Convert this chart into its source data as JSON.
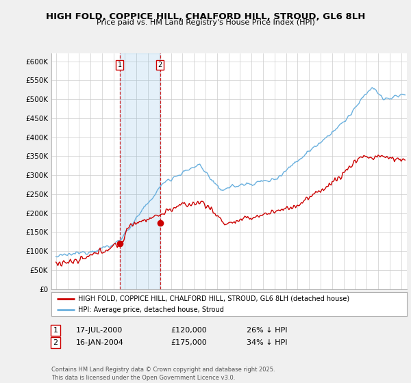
{
  "title": "HIGH FOLD, COPPICE HILL, CHALFORD HILL, STROUD, GL6 8LH",
  "subtitle": "Price paid vs. HM Land Registry's House Price Index (HPI)",
  "ylabel_ticks": [
    "£0",
    "£50K",
    "£100K",
    "£150K",
    "£200K",
    "£250K",
    "£300K",
    "£350K",
    "£400K",
    "£450K",
    "£500K",
    "£550K",
    "£600K"
  ],
  "ytick_values": [
    0,
    50000,
    100000,
    150000,
    200000,
    250000,
    300000,
    350000,
    400000,
    450000,
    500000,
    550000,
    600000
  ],
  "xlim": [
    1994.6,
    2025.5
  ],
  "ylim": [
    0,
    620000
  ],
  "legend_line1": "HIGH FOLD, COPPICE HILL, CHALFORD HILL, STROUD, GL6 8LH (detached house)",
  "legend_line2": "HPI: Average price, detached house, Stroud",
  "purchase1_date": 2000.54,
  "purchase1_price": 120000,
  "purchase2_date": 2004.05,
  "purchase2_price": 175000,
  "footnote": "Contains HM Land Registry data © Crown copyright and database right 2025.\nThis data is licensed under the Open Government Licence v3.0.",
  "bg_color": "#f0f0f0",
  "plot_bg_color": "#ffffff",
  "hpi_color": "#6ab0de",
  "price_color": "#cc0000",
  "vline_color": "#cc0000",
  "grid_color": "#cccccc",
  "row1_label": "1",
  "row1_date": "17-JUL-2000",
  "row1_price": "£120,000",
  "row1_pct": "26% ↓ HPI",
  "row2_label": "2",
  "row2_date": "16-JAN-2004",
  "row2_price": "£175,000",
  "row2_pct": "34% ↓ HPI"
}
